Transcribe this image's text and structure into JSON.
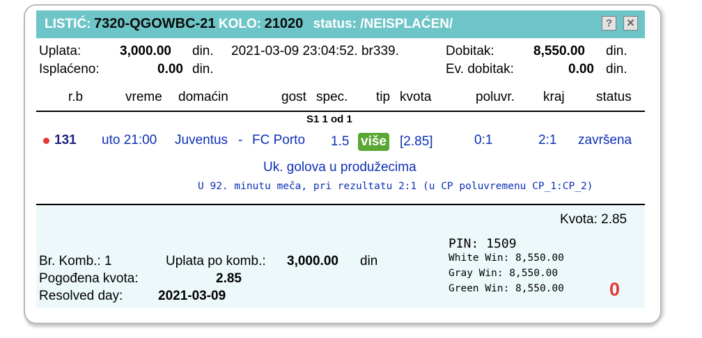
{
  "title": {
    "listic_label": "LISTIĆ:",
    "listic_value": "7320-QGOWBC-21",
    "kolo_label": "KOLO:",
    "kolo_value": "21020",
    "status_text": "status: /NEISPLAĆEN/",
    "help_icon": "question-icon",
    "close_icon": "close-icon"
  },
  "summary": {
    "uplata_label": "Uplata:",
    "uplata_value": "3,000.00",
    "uplata_unit": "din.",
    "datetime": "2021-03-09 23:04:52. br339.",
    "dobitak_label": "Dobitak:",
    "dobitak_value": "8,550.00",
    "dobitak_unit": "din.",
    "isplaceno_label": "Isplaćeno:",
    "isplaceno_value": "0.00",
    "isplaceno_unit": "din.",
    "ev_label": "Ev. dobitak:",
    "ev_value": "0.00",
    "ev_unit": "din."
  },
  "headers": {
    "rb": "r.b",
    "vreme": "vreme",
    "domacin": "domaćin",
    "gost": "gost",
    "spec": "spec.",
    "tip": "tip",
    "kvota": "kvota",
    "poluvr": "poluvr.",
    "kraj": "kraj",
    "status": "status"
  },
  "group_label": "S1  1 od 1",
  "match": {
    "rb": "131",
    "vreme": "uto 21:00",
    "domacin": "Juventus",
    "sep": "-",
    "gost": "FC Porto",
    "spec": "1.5",
    "tip": "više",
    "kvota": "[2.85]",
    "poluvr": "0:1",
    "kraj": "2:1",
    "status": "završena",
    "market": "Uk. golova u produžecima",
    "note": "U 92. minutu meča, pri rezultatu 2:1 (u CP poluvremenu CP_1:CP_2)"
  },
  "footer": {
    "kvota": "Kvota: 2.85",
    "pin": "PIN: 1509",
    "white_win": "White Win: 8,550.00",
    "gray_win": "Gray Win: 8,550.00",
    "green_win": "Green Win: 8,550.00",
    "zero": "0",
    "komb_label": "Br. Komb.: 1",
    "uplata_komb_label": "Uplata po komb.:",
    "uplata_komb_value": "3,000.00",
    "uplata_komb_unit": "din",
    "pogodjena_label": "Pogođena kvota:",
    "pogodjena_value": "2.85",
    "resolved_label": "Resolved day:",
    "resolved_value": "2021-03-09"
  },
  "colors": {
    "titlebar": "#6ec5c8",
    "badge": "#5aa834",
    "link_blue": "#0b2fb5",
    "zero_red": "#e53935"
  }
}
